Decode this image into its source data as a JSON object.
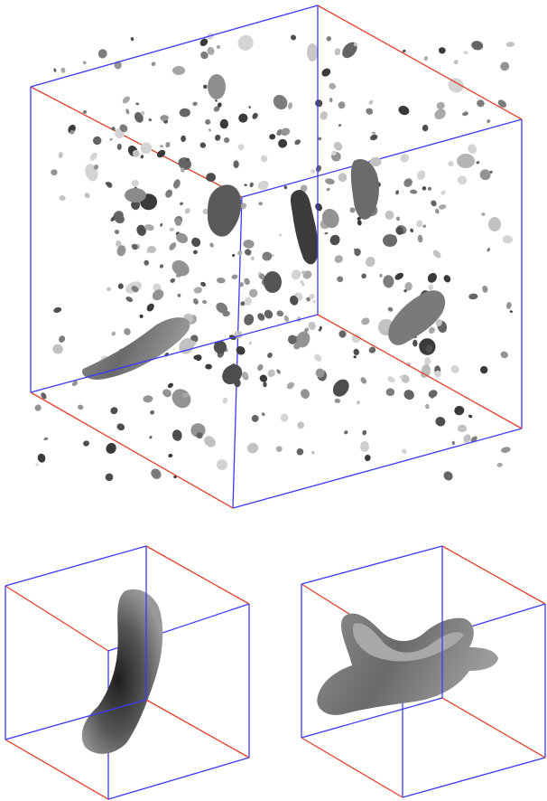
{
  "figure": {
    "panels": [
      {
        "id": "main-volume",
        "content": "scattered-blobs"
      },
      {
        "id": "detail-left",
        "content": "curved-structure"
      },
      {
        "id": "detail-right",
        "content": "saddle-structure"
      }
    ],
    "colors": {
      "background": "#ffffff",
      "edge_red": "#e0402a",
      "edge_blue": "#3a3aff",
      "blob_light": "#d6d6d6",
      "blob_mid": "#8a8a8a",
      "blob_dark": "#2a2a2a"
    }
  }
}
